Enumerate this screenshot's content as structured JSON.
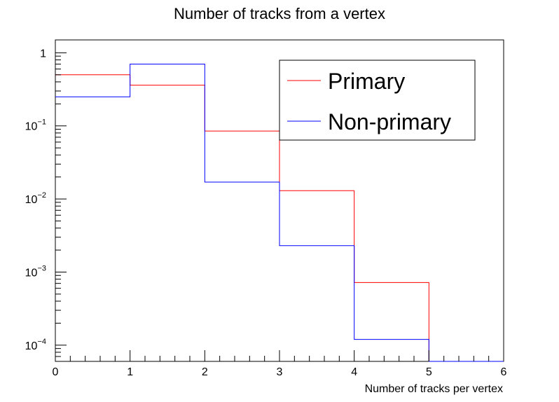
{
  "chart_data": {
    "type": "histogram-step",
    "title": "Number of tracks from a vertex",
    "xlabel": "Number of tracks per vertex",
    "ylabel": "",
    "x_edges": [
      0,
      1,
      2,
      3,
      4,
      5,
      6
    ],
    "xlim": [
      0,
      6
    ],
    "ylim": [
      6e-05,
      1.5
    ],
    "yscale": "log",
    "grid": false,
    "legend_position": "top-right",
    "x_ticks": [
      {
        "value": 0,
        "label": "0"
      },
      {
        "value": 1,
        "label": "1"
      },
      {
        "value": 2,
        "label": "2"
      },
      {
        "value": 3,
        "label": "3"
      },
      {
        "value": 4,
        "label": "4"
      },
      {
        "value": 5,
        "label": "5"
      },
      {
        "value": 6,
        "label": "6"
      }
    ],
    "y_ticks": [
      {
        "value": 1,
        "base": "1",
        "exp": ""
      },
      {
        "value": 0.1,
        "base": "10",
        "exp": "−1"
      },
      {
        "value": 0.01,
        "base": "10",
        "exp": "−2"
      },
      {
        "value": 0.001,
        "base": "10",
        "exp": "−3"
      },
      {
        "value": 0.0001,
        "base": "10",
        "exp": "−4"
      }
    ],
    "series": [
      {
        "name": "Primary",
        "color": "#ff0000",
        "values": [
          0.5,
          0.36,
          0.085,
          0.013,
          0.00072,
          0
        ]
      },
      {
        "name": "Non-primary",
        "color": "#0000ff",
        "values": [
          0.25,
          0.7,
          0.017,
          0.0023,
          0.00012,
          0
        ]
      }
    ]
  }
}
